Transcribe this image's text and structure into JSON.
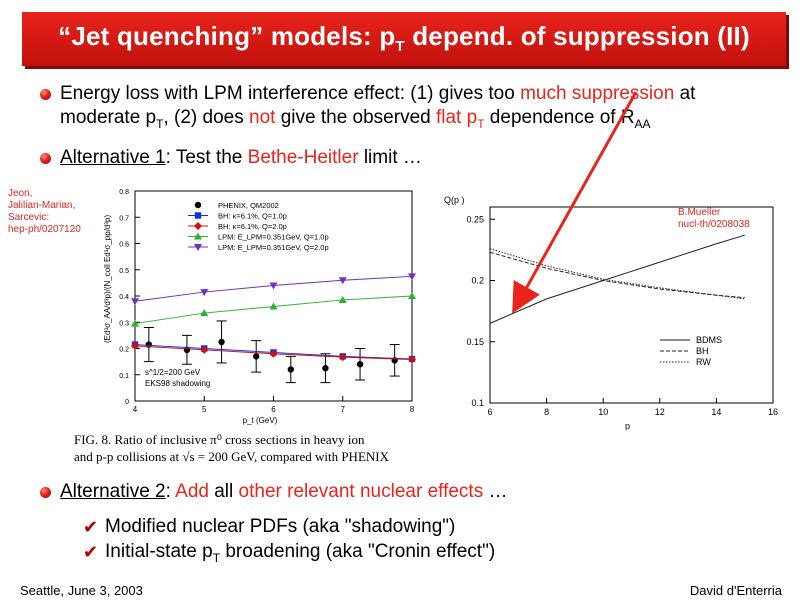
{
  "title": {
    "pre": "“Jet quenching” models: p",
    "sub": "T",
    "post": " depend. of suppression (II)"
  },
  "bullet1": {
    "line1_a": "Energy loss with LPM interference effect:  (1) gives too ",
    "line1_red": "much suppression",
    "line1_b": " at",
    "line2_a": "moderate p",
    "line2_sub1": "T",
    "line2_b": ",    (2) does ",
    "line2_not": "not",
    "line2_c": " give the observed ",
    "line2_flat": "flat p",
    "line2_sub2": "T",
    "line2_d": " dependence of R",
    "line2_sub3": "AA"
  },
  "bullet2": {
    "alt": "Alternative 1",
    "a": ": Test the ",
    "red": "Bethe-Heitler",
    "b": " limit …"
  },
  "refs": {
    "left_l1": "Jeon,",
    "left_l2": "Jalilian-Marian,",
    "left_l3": "Sarcevic:",
    "left_l4": "hep-ph/0207120",
    "right_l1": "B.Mueller",
    "right_l2": "nucl-th/0208038"
  },
  "caption": {
    "l1": "FIG. 8.  Ratio of inclusive π⁰ cross sections in heavy ion",
    "l2": "and p-p collisions at √s = 200 GeV, compared with PHENIX"
  },
  "bullet3": {
    "alt": "Alternative 2",
    "a": ": ",
    "add": "Add",
    "b": " all ",
    "red": "other relevant nuclear effects",
    "c": " …"
  },
  "checks": [
    {
      "pre": "Modified nuclear PDFs (aka \"shadowing\")",
      "sub": "",
      "post": ""
    },
    {
      "pre": "Initial-state p",
      "sub": "T",
      "post": " broadening (aka \"Cronin effect\")"
    }
  ],
  "footer": {
    "left": "Seattle, June  3, 2003",
    "right": "David d'Enterria"
  },
  "colors": {
    "title_bg": "#e8241c",
    "accent": "#e8241c"
  },
  "chart_data": [
    {
      "type": "scatter",
      "ylabel": "(Ed³σ_AA/d³p)/(N_coll Ed³σ_pp/d³p)",
      "xlabel": "p_t (GeV)",
      "xlim": [
        4,
        8
      ],
      "ylim": [
        0,
        0.8
      ],
      "xticks": [
        4,
        5,
        6,
        7,
        8
      ],
      "yticks": [
        0,
        0.1,
        0.2,
        0.3,
        0.4,
        0.5,
        0.6,
        0.7,
        0.8
      ],
      "legend_position": "top-center",
      "annotations": [
        "s^1/2=200 GeV",
        "EKS98 shadowing"
      ],
      "series": [
        {
          "name": "PHENIX, QM2002",
          "color": "#000000",
          "marker": "circle",
          "x": [
            4.2,
            4.75,
            5.25,
            5.75,
            6.25,
            6.75,
            7.25,
            7.75
          ],
          "y": [
            0.215,
            0.195,
            0.225,
            0.17,
            0.12,
            0.125,
            0.14,
            0.155
          ],
          "yerr": [
            0.065,
            0.055,
            0.08,
            0.06,
            0.05,
            0.055,
            0.06,
            0.06
          ]
        },
        {
          "name": "BH: κ=6.1%, Q=1.0p",
          "color": "#1030e0",
          "marker": "square",
          "x": [
            4,
            5,
            6,
            7,
            8
          ],
          "y": [
            0.215,
            0.2,
            0.185,
            0.17,
            0.16
          ]
        },
        {
          "name": "BH: κ=6.1%, Q=2.0p",
          "color": "#d01010",
          "marker": "diamond",
          "x": [
            4,
            5,
            6,
            7,
            8
          ],
          "y": [
            0.21,
            0.195,
            0.18,
            0.167,
            0.158
          ]
        },
        {
          "name": "LPM: E_LPM=0.351GeV, Q=1.0p",
          "color": "#30b030",
          "marker": "triangle-up",
          "x": [
            4,
            5,
            6,
            7,
            8
          ],
          "y": [
            0.295,
            0.335,
            0.36,
            0.385,
            0.4
          ]
        },
        {
          "name": "LPM: E_LPM=0.351GeV, Q=2.0p",
          "color": "#7030c0",
          "marker": "triangle-down",
          "x": [
            4,
            5,
            6,
            7,
            8
          ],
          "y": [
            0.38,
            0.415,
            0.44,
            0.46,
            0.475
          ]
        }
      ]
    },
    {
      "type": "line",
      "ylabel": "Q(p )",
      "xlabel": "p",
      "xlim": [
        6,
        16
      ],
      "ylim": [
        0.1,
        0.26
      ],
      "xticks": [
        6,
        8,
        10,
        12,
        14,
        16
      ],
      "yticks": [
        0.1,
        0.15,
        0.2,
        0.25
      ],
      "legend_position": "bottom-right",
      "series": [
        {
          "name": "BDMS",
          "style": "solid",
          "x": [
            6,
            8,
            10,
            12,
            14,
            15
          ],
          "y": [
            0.165,
            0.185,
            0.2,
            0.215,
            0.23,
            0.237
          ]
        },
        {
          "name": "BH",
          "style": "dashed",
          "x": [
            6,
            8,
            10,
            12,
            14,
            15
          ],
          "y": [
            0.223,
            0.21,
            0.2,
            0.193,
            0.188,
            0.186
          ]
        },
        {
          "name": "RW",
          "style": "dotted",
          "x": [
            6,
            8,
            10,
            12,
            14,
            15
          ],
          "y": [
            0.226,
            0.212,
            0.201,
            0.194,
            0.188,
            0.185
          ]
        }
      ]
    }
  ]
}
